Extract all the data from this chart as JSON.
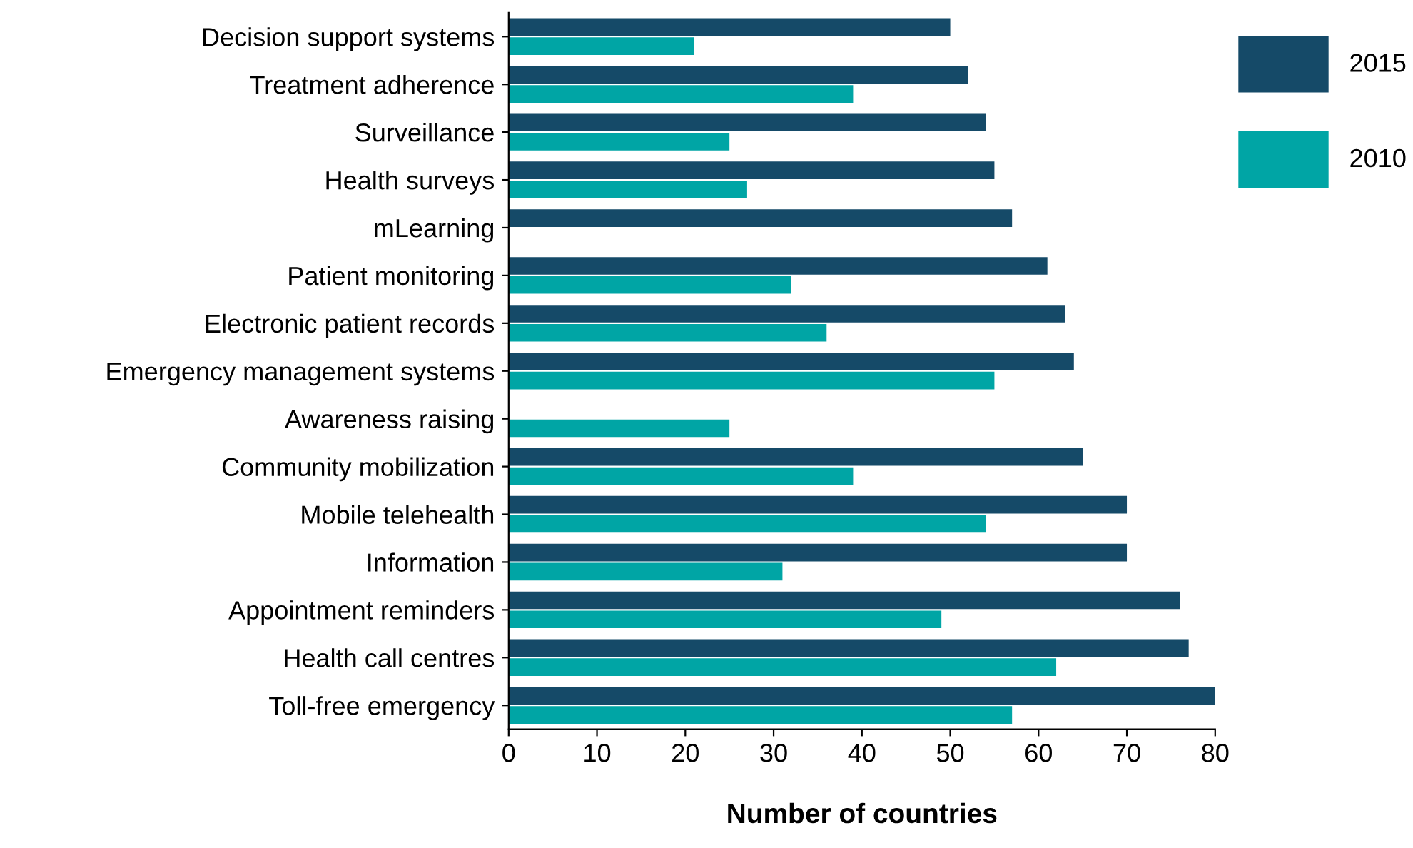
{
  "chart_data": {
    "type": "bar",
    "orientation": "horizontal",
    "xlabel": "Number of countries",
    "categories": [
      "Decision support systems",
      "Treatment adherence",
      "Surveillance",
      "Health surveys",
      "mLearning",
      "Patient monitoring",
      "Electronic patient records",
      "Emergency management systems",
      "Awareness raising",
      "Community mobilization",
      "Mobile telehealth",
      "Information",
      "Appointment reminders",
      "Health call centres",
      "Toll-free emergency"
    ],
    "series": [
      {
        "name": "2015",
        "color": "#154a68",
        "values": [
          50,
          52,
          54,
          55,
          57,
          61,
          63,
          64,
          null,
          65,
          70,
          70,
          76,
          77,
          80
        ]
      },
      {
        "name": "2010",
        "color": "#00a5a5",
        "values": [
          21,
          39,
          25,
          27,
          null,
          32,
          36,
          55,
          25,
          39,
          54,
          31,
          49,
          62,
          57
        ]
      }
    ],
    "xlim": [
      0,
      80
    ],
    "xticks": [
      0,
      10,
      20,
      30,
      40,
      50,
      60,
      70,
      80
    ],
    "grid": false,
    "legend": "top right"
  }
}
